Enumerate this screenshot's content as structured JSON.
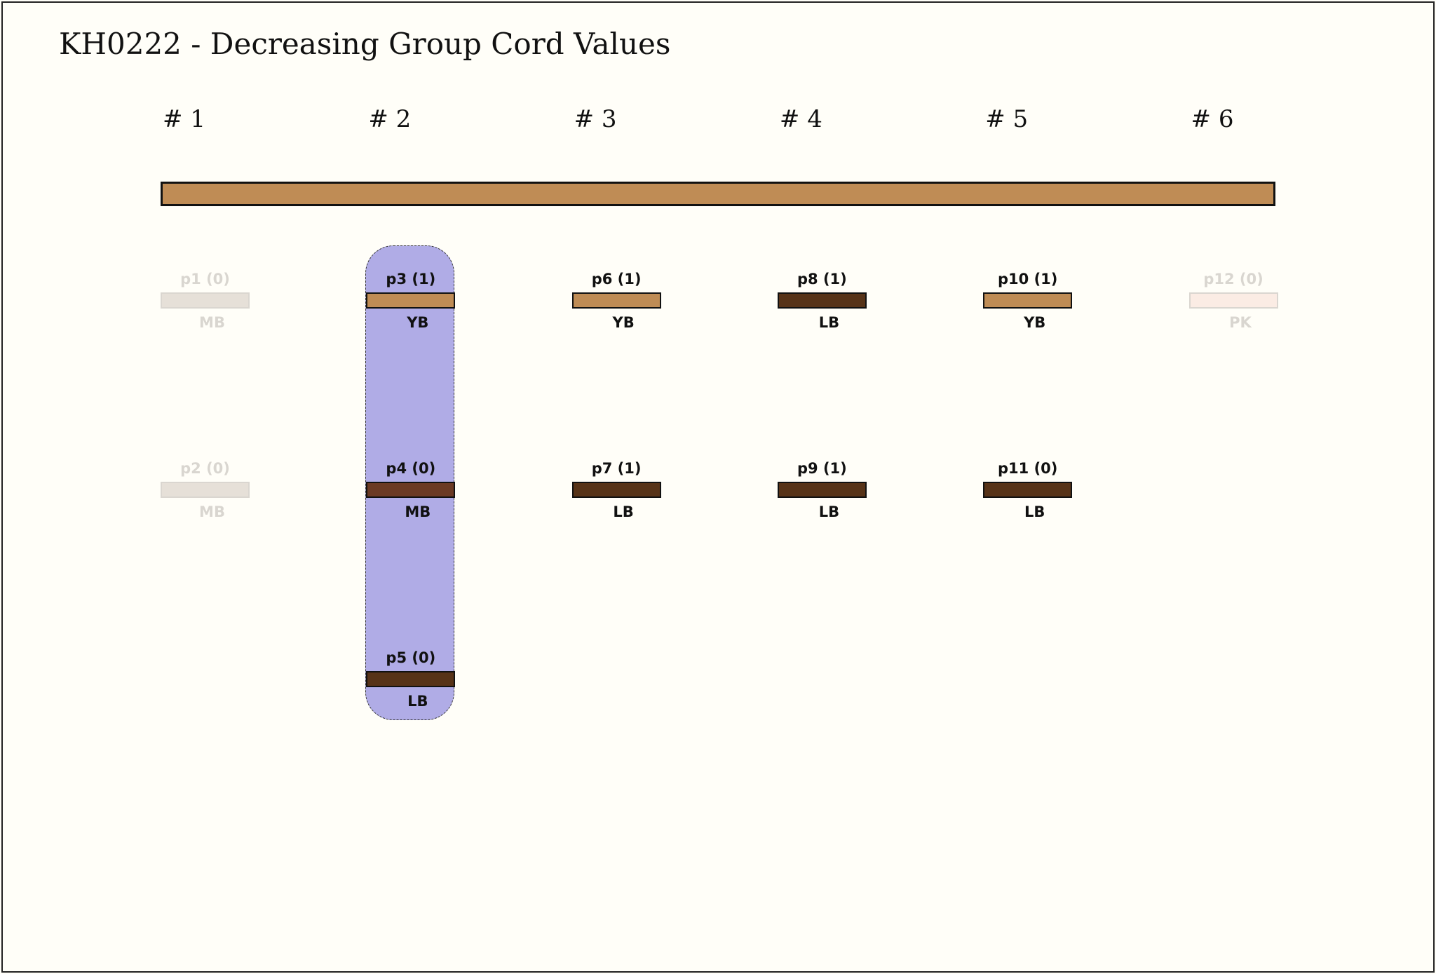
{
  "title": "KH0222 - Decreasing Group Cord Values",
  "groups": [
    "# 1",
    "# 2",
    "# 3",
    "# 4",
    "# 5",
    "# 6"
  ],
  "main_cord_color": "#bf8c55",
  "highlight": {
    "group": 2,
    "color": "#b0ace6"
  },
  "colors": {
    "YB": "#bf8c55",
    "LB": "#573318",
    "MB": "#6b3a24",
    "MB_faded": "#e6e0d8",
    "PK_faded": "#fbece4"
  },
  "pendants": [
    {
      "label": "p1 (0)",
      "color_code": "MB",
      "group": 1,
      "row": 1,
      "faded": true
    },
    {
      "label": "p2 (0)",
      "color_code": "MB",
      "group": 1,
      "row": 2,
      "faded": true
    },
    {
      "label": "p3 (1)",
      "color_code": "YB",
      "group": 2,
      "row": 1,
      "faded": false
    },
    {
      "label": "p4 (0)",
      "color_code": "MB",
      "group": 2,
      "row": 2,
      "faded": false
    },
    {
      "label": "p5 (0)",
      "color_code": "LB",
      "group": 2,
      "row": 3,
      "faded": false
    },
    {
      "label": "p6 (1)",
      "color_code": "YB",
      "group": 3,
      "row": 1,
      "faded": false
    },
    {
      "label": "p7 (1)",
      "color_code": "LB",
      "group": 3,
      "row": 2,
      "faded": false
    },
    {
      "label": "p8 (1)",
      "color_code": "LB",
      "group": 4,
      "row": 1,
      "faded": false
    },
    {
      "label": "p9 (1)",
      "color_code": "LB",
      "group": 4,
      "row": 2,
      "faded": false
    },
    {
      "label": "p10 (1)",
      "color_code": "YB",
      "group": 5,
      "row": 1,
      "faded": false
    },
    {
      "label": "p11 (0)",
      "color_code": "LB",
      "group": 5,
      "row": 2,
      "faded": false
    },
    {
      "label": "p12 (0)",
      "color_code": "PK",
      "group": 6,
      "row": 1,
      "faded": true
    }
  ]
}
